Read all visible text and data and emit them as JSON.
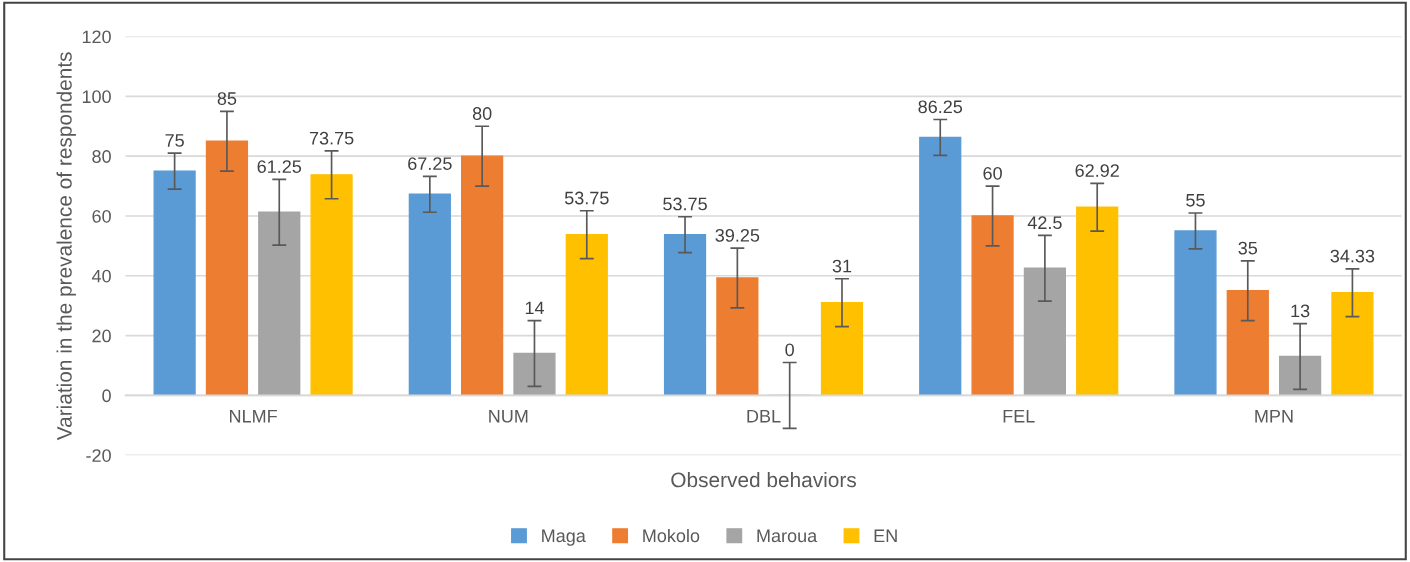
{
  "chart_data": {
    "type": "bar",
    "xlabel": "Observed behaviors",
    "ylabel": "Variation in the prevalence of respondents",
    "categories": [
      "NLMF",
      "NUM",
      "DBL",
      "FEL",
      "MPN"
    ],
    "series": [
      {
        "name": "Maga",
        "color": "#5b9bd5",
        "values": [
          75,
          67.25,
          53.75,
          86.25,
          55
        ],
        "errors": [
          6,
          6,
          6,
          6,
          6
        ]
      },
      {
        "name": "Mokolo",
        "color": "#ed7d31",
        "values": [
          85,
          80,
          39.25,
          60,
          35
        ],
        "errors": [
          10,
          10,
          10,
          10,
          10
        ]
      },
      {
        "name": "Maroua",
        "color": "#a5a5a5",
        "values": [
          61.25,
          14,
          0,
          42.5,
          13
        ],
        "errors": [
          11,
          11,
          11,
          11,
          11
        ]
      },
      {
        "name": "EN",
        "color": "#ffc000",
        "values": [
          73.75,
          53.75,
          31,
          62.92,
          34.33
        ],
        "errors": [
          8,
          8,
          8,
          8,
          8
        ]
      }
    ],
    "ylim": [
      -20,
      120
    ],
    "yticks": [
      -20,
      0,
      20,
      40,
      60,
      80,
      100,
      120
    ],
    "grid": "y",
    "legend": "bottom",
    "data_labels": true
  }
}
